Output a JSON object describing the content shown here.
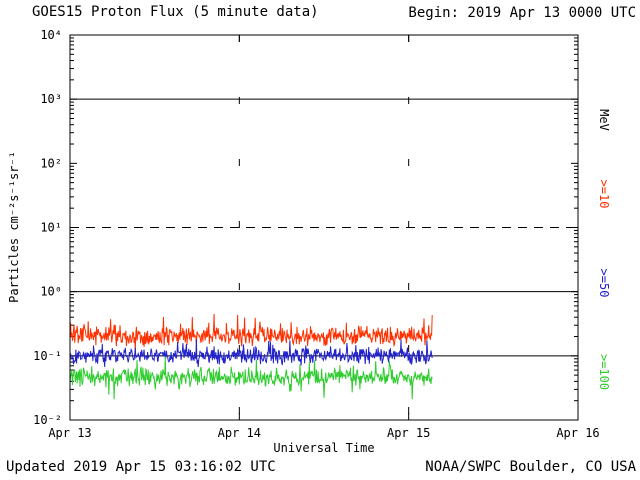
{
  "header": {
    "title": "GOES15 Proton Flux (5 minute data)",
    "begin": "Begin: 2019 Apr 13 0000 UTC"
  },
  "footer": {
    "updated": "Updated 2019 Apr 15 03:16:02 UTC",
    "source": "NOAA/SWPC Boulder, CO USA"
  },
  "chart_data": {
    "type": "line",
    "title": "GOES15 Proton Flux (5 minute data)",
    "begin": "Begin: 2019 Apr 13 0000 UTC",
    "xlabel": "Universal Time",
    "ylabel": "Particles cm⁻²s⁻¹sr⁻¹",
    "right_axis_unit": "MeV",
    "x_tick_labels": [
      "Apr 13",
      "Apr 14",
      "Apr 15",
      "Apr 16"
    ],
    "x_range_days": 3,
    "y_tick_labels": [
      "10⁴",
      "10³",
      "10²",
      "10¹",
      "10⁰",
      "10⁻¹",
      "10⁻²"
    ],
    "y_exponent_range": [
      4,
      -2
    ],
    "solid_hlines_exp": [
      3,
      0,
      -1
    ],
    "dashed_hlines_exp": [
      1
    ],
    "dotted_vlines_day": [
      1,
      2
    ],
    "data_start_day": 0,
    "data_end_day": 2.14,
    "sample_interval_minutes": 5,
    "grid": "partial",
    "legend_position": "right-rotated",
    "series": [
      {
        "id": "ge10",
        "name": ">=10",
        "color": "#ff3000",
        "baseline_log_flux": -0.7,
        "noise_log": 0.17,
        "spike_up": 0.28,
        "spike_up_p": 0.1,
        "spike_down": 0.12,
        "spike_down_p": 0.05,
        "seed": 11,
        "approx_flux_range": [
          0.1,
          0.45
        ]
      },
      {
        "id": "ge50",
        "name": ">=50",
        "color": "#2222cc",
        "baseline_log_flux": -1.0,
        "noise_log": 0.14,
        "spike_up": 0.22,
        "spike_up_p": 0.08,
        "spike_down": 0.12,
        "spike_down_p": 0.05,
        "seed": 22,
        "approx_flux_range": [
          0.05,
          0.2
        ]
      },
      {
        "id": "ge100",
        "name": ">=100",
        "color": "#2ecc2e",
        "baseline_log_flux": -1.33,
        "noise_log": 0.16,
        "spike_up": 0.25,
        "spike_up_p": 0.08,
        "spike_down": 0.25,
        "spike_down_p": 0.06,
        "seed": 33,
        "approx_flux_range": [
          0.02,
          0.09
        ]
      }
    ]
  }
}
